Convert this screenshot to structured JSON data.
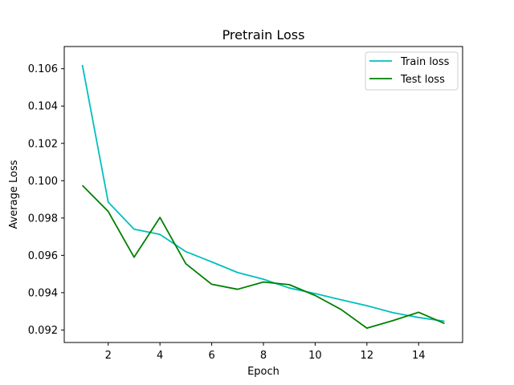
{
  "chart_data": {
    "type": "line",
    "title": "Pretrain Loss",
    "xlabel": "Epoch",
    "ylabel": "Average Loss",
    "xlim": [
      0.3,
      15.7
    ],
    "ylim": [
      0.09133,
      0.10719
    ],
    "xticks": [
      2,
      4,
      6,
      8,
      10,
      12,
      14
    ],
    "xtick_labels": [
      "2",
      "4",
      "6",
      "8",
      "10",
      "12",
      "14"
    ],
    "yticks": [
      0.092,
      0.094,
      0.096,
      0.098,
      0.1,
      0.102,
      0.104,
      0.106
    ],
    "ytick_labels": [
      "0.092",
      "0.094",
      "0.096",
      "0.098",
      "0.100",
      "0.102",
      "0.104",
      "0.106"
    ],
    "grid": false,
    "legend_position": "top-right",
    "x": [
      1,
      2,
      3,
      4,
      5,
      6,
      7,
      8,
      9,
      10,
      11,
      12,
      13,
      14,
      15
    ],
    "series": [
      {
        "name": "Train loss",
        "color": "#00bfbf",
        "values": [
          0.1062,
          0.09885,
          0.0974,
          0.09712,
          0.0962,
          0.09565,
          0.09508,
          0.09472,
          0.09425,
          0.09395,
          0.09362,
          0.0933,
          0.09293,
          0.09267,
          0.09247
        ]
      },
      {
        "name": "Test loss",
        "color": "#008000",
        "values": [
          0.09975,
          0.09835,
          0.0959,
          0.09803,
          0.09555,
          0.09445,
          0.09418,
          0.09457,
          0.09443,
          0.09385,
          0.0931,
          0.0921,
          0.0925,
          0.09295,
          0.09235
        ]
      }
    ]
  }
}
